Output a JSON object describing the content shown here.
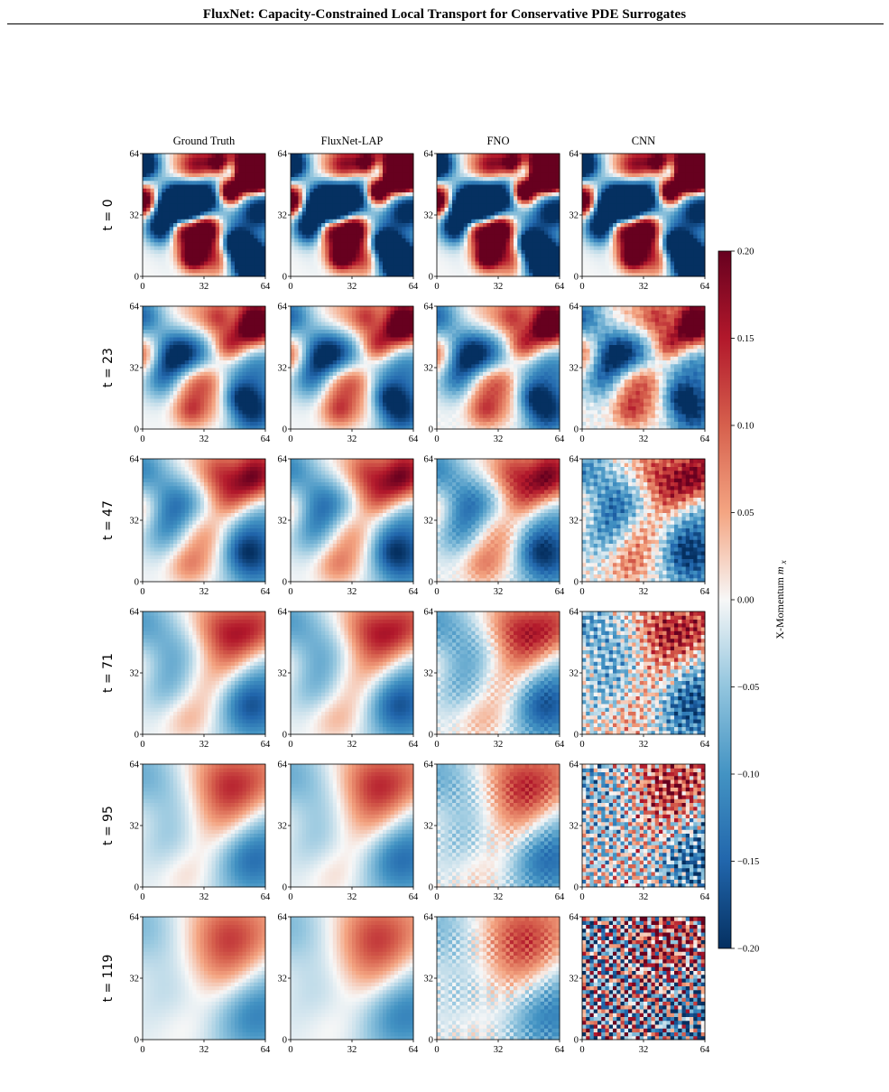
{
  "header": {
    "title": "FluxNet: Capacity-Constrained Local Transport for Conservative PDE Surrogates"
  },
  "colorbar": {
    "label": "X-Momentum",
    "symbol": "m",
    "subscript": "x",
    "ticks": [
      "0.20",
      "0.15",
      "0.10",
      "0.05",
      "0.00",
      "−0.05",
      "−0.10",
      "−0.15",
      "−0.20"
    ],
    "vmin": -0.2,
    "vmax": 0.2,
    "colormap": "RdBu_r"
  },
  "chart_data": {
    "type": "heatmap",
    "title": "",
    "columns": [
      "Ground Truth",
      "FluxNet-LAP",
      "FNO",
      "CNN"
    ],
    "rows": [
      {
        "t": "0",
        "label": "t = 0"
      },
      {
        "t": "23",
        "label": "t = 23"
      },
      {
        "t": "47",
        "label": "t = 47"
      },
      {
        "t": "71",
        "label": "t = 71"
      },
      {
        "t": "95",
        "label": "t = 95"
      },
      {
        "t": "119",
        "label": "t = 119"
      }
    ],
    "x_ticks": [
      "0",
      "32",
      "64"
    ],
    "y_ticks": [
      "0",
      "32",
      "64"
    ],
    "xlim": [
      0,
      64
    ],
    "ylim": [
      0,
      64
    ],
    "value_range": [
      -0.2,
      0.2
    ],
    "colors": {
      "positive": "#67001f",
      "neutral": "#f7f7f7",
      "negative": "#053061"
    }
  }
}
